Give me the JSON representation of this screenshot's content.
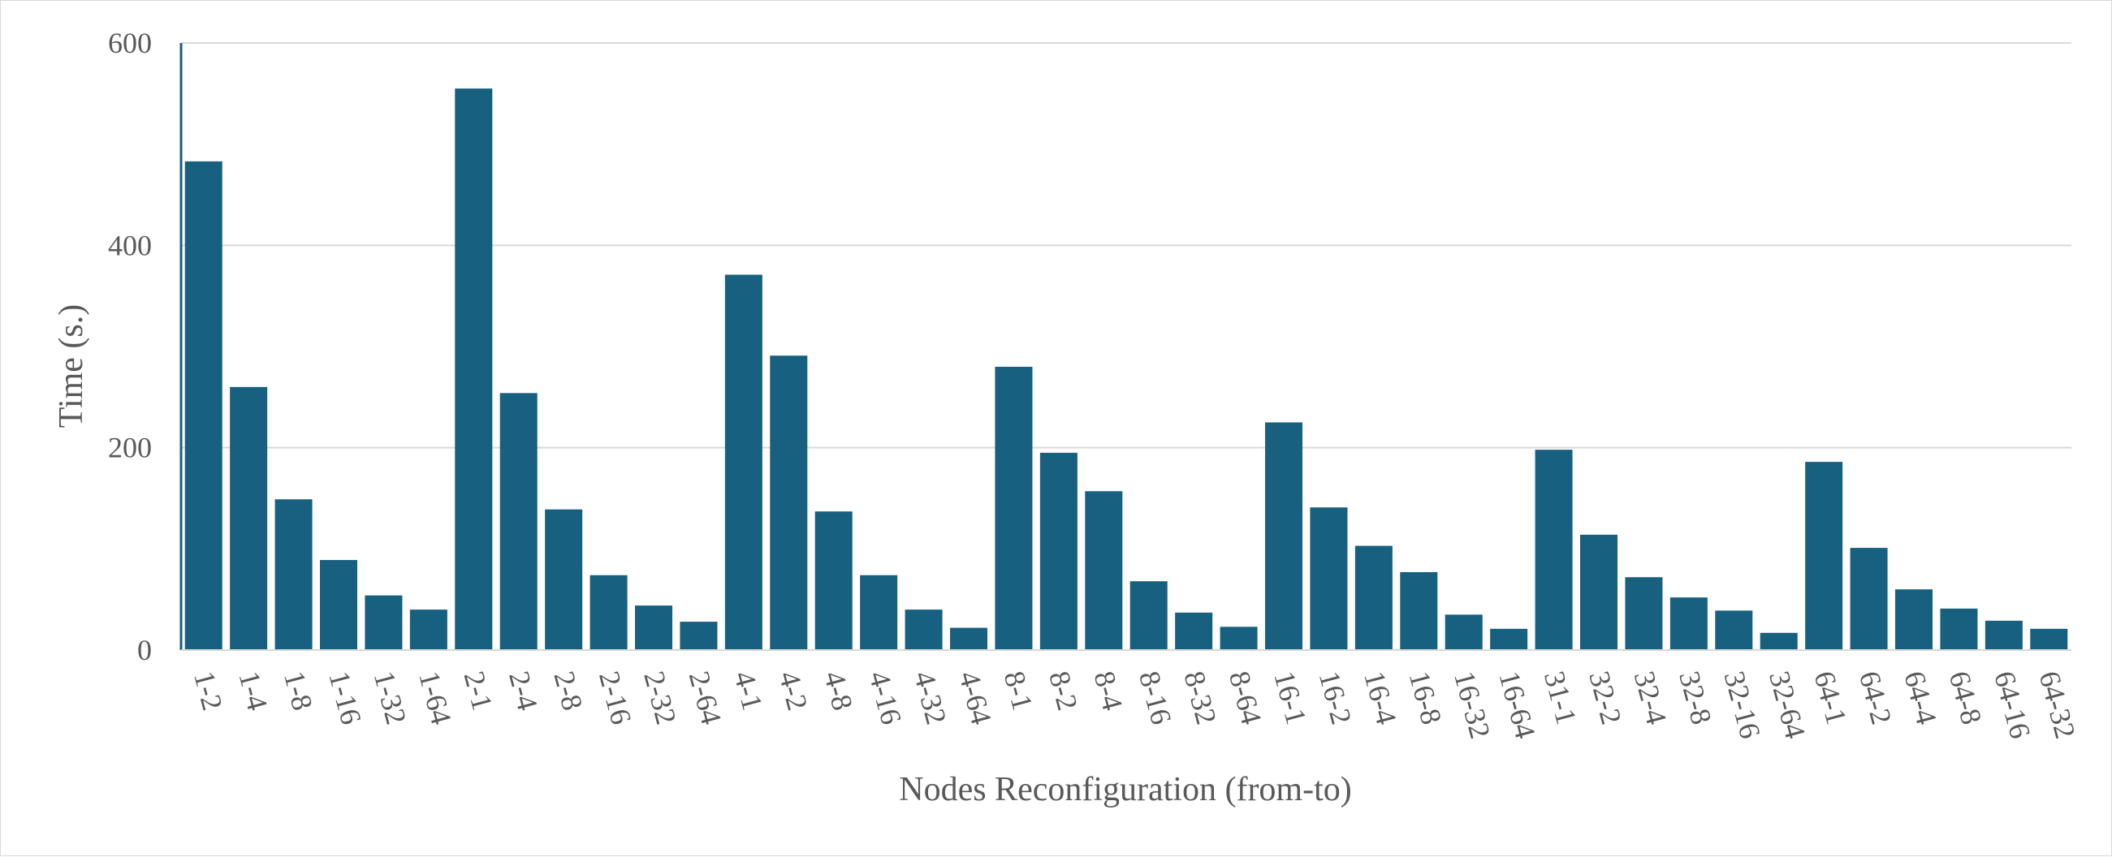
{
  "chart_data": {
    "type": "bar",
    "title": "",
    "xlabel": "Nodes Reconfiguration (from-to)",
    "ylabel": "Time (s.)",
    "ylim": [
      0,
      600
    ],
    "yticks": [
      0,
      200,
      400,
      600
    ],
    "grid": true,
    "legend": "none",
    "bar_color": "#17607f",
    "categories": [
      "1-2",
      "1-4",
      "1-8",
      "1-16",
      "1-32",
      "1-64",
      "2-1",
      "2-4",
      "2-8",
      "2-16",
      "2-32",
      "2-64",
      "4-1",
      "4-2",
      "4-8",
      "4-16",
      "4-32",
      "4-64",
      "8-1",
      "8-2",
      "8-4",
      "8-16",
      "8-32",
      "8-64",
      "16-1",
      "16-2",
      "16-4",
      "16-8",
      "16-32",
      "16-64",
      "31-1",
      "32-2",
      "32-4",
      "32-8",
      "32-16",
      "32-64",
      "64-1",
      "64-2",
      "64-4",
      "64-8",
      "64-16",
      "64-32"
    ],
    "values": [
      483,
      260,
      149,
      89,
      54,
      40,
      555,
      254,
      139,
      74,
      44,
      28,
      371,
      291,
      137,
      74,
      40,
      22,
      280,
      195,
      157,
      68,
      37,
      23,
      225,
      141,
      103,
      77,
      35,
      21,
      198,
      114,
      72,
      52,
      39,
      17,
      186,
      101,
      60,
      41,
      29,
      21
    ]
  }
}
